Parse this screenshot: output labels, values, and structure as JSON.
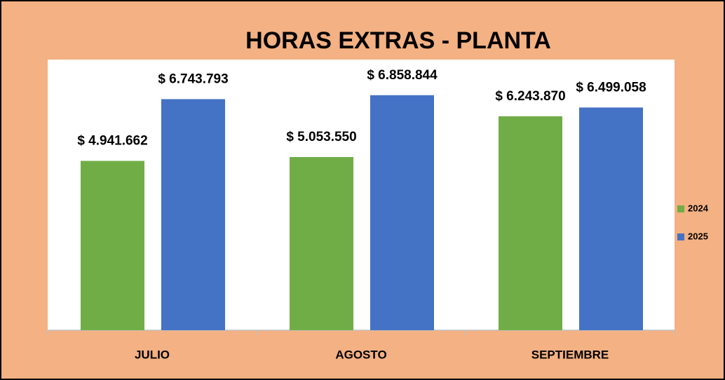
{
  "chart_data": {
    "type": "bar",
    "title": "HORAS EXTRAS  - PLANTA",
    "categories": [
      "JULIO",
      "AGOSTO",
      "SEPTIEMBRE"
    ],
    "series": [
      {
        "name": "2024",
        "color": "#70ad47",
        "values": [
          4941662,
          5053550,
          6243870
        ],
        "value_labels": [
          "$ 4.941.662",
          "$ 5.053.550",
          "$ 6.243.870"
        ]
      },
      {
        "name": "2025",
        "color": "#4472c4",
        "values": [
          6743793,
          6858844,
          6499058
        ],
        "value_labels": [
          "$ 6.743.793",
          "$ 6.858.844",
          "$ 6.499.058"
        ]
      }
    ],
    "ylim": [
      0,
      8000000
    ],
    "legend": "right"
  }
}
